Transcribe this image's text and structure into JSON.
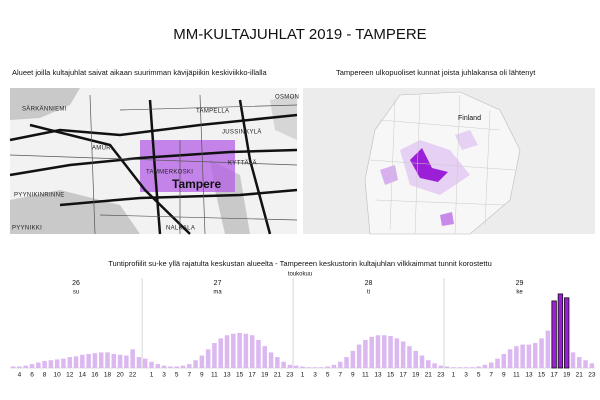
{
  "header": {
    "title": "MM-KULTAJUHLAT 2019 - TAMPERE"
  },
  "map_left": {
    "caption": "Alueet joilla kultajuhlat saivat aikaan suurimman kävijäpiikin keskiviikko-illalla",
    "labels": [
      "SÄRKÄNNIEMI",
      "TAMPELLA",
      "OSMON",
      "JUSSINKYLÄ",
      "AMURI",
      "TAMMERKOSKI",
      "KYTTÄLÄ",
      "Tampere",
      "PYYNIKINRINNE",
      "PYYNIKKI",
      "NALKALA"
    ]
  },
  "map_right": {
    "caption": "Tampereen ulkopuoliset kunnat joista juhlakansa oli lähtenyt",
    "labels": [
      "Finland"
    ]
  },
  "chart_data": {
    "type": "bar",
    "title": "Tuntiprofiilit su-ke yllä rajatulta keskustan alueelta - Tampereen keskustorin kultajuhlan vilkkaimmat tunnit korostettu",
    "month": "toukokuu",
    "days": [
      {
        "day": "26",
        "weekday": "su"
      },
      {
        "day": "27",
        "weekday": "ma"
      },
      {
        "day": "28",
        "weekday": "ti"
      },
      {
        "day": "29",
        "weekday": "ke"
      }
    ],
    "categories": [
      null,
      "4",
      null,
      "6",
      null,
      "8",
      null,
      "10",
      null,
      "12",
      null,
      "14",
      null,
      "16",
      null,
      "18",
      null,
      "20",
      null,
      "22",
      null,
      null,
      "1",
      null,
      "3",
      null,
      "5",
      null,
      "7",
      null,
      "9",
      null,
      "11",
      null,
      "13",
      null,
      "15",
      null,
      "17",
      null,
      "19",
      null,
      "21",
      null,
      "23",
      null,
      "1",
      null,
      "3",
      null,
      "5",
      null,
      "7",
      null,
      "9",
      null,
      "11",
      null,
      "13",
      null,
      "15",
      null,
      "17",
      null,
      "19",
      null,
      "21",
      null,
      "23",
      null,
      "1",
      null,
      "3",
      null,
      "5",
      null,
      "7",
      null,
      "9",
      null,
      "11",
      null,
      "13",
      null,
      "15",
      null,
      "17",
      null,
      "19",
      null,
      "21",
      null,
      "23"
    ],
    "series": [
      {
        "color": "#dcb8f0",
        "values": [
          2,
          2,
          3,
          5,
          7,
          9,
          10,
          11,
          12,
          14,
          15,
          17,
          18,
          19,
          20,
          20,
          18,
          17,
          16,
          24,
          14,
          12,
          8,
          5,
          3,
          2,
          2,
          3,
          5,
          10,
          16,
          24,
          32,
          38,
          42,
          44,
          45,
          44,
          42,
          36,
          28,
          20,
          14,
          8,
          4,
          3,
          2,
          1,
          1,
          1,
          2,
          4,
          8,
          14,
          22,
          30,
          36,
          40,
          42,
          42,
          41,
          38,
          34,
          28,
          22,
          16,
          10,
          6,
          3,
          2,
          1,
          1,
          1,
          1,
          2,
          4,
          7,
          12,
          18,
          24,
          28,
          30,
          30,
          32,
          38,
          48,
          null,
          null,
          null,
          20,
          14,
          10,
          6
        ]
      },
      {
        "color": "#9b1fd6",
        "values": [
          null,
          null,
          null,
          null,
          null,
          null,
          null,
          null,
          null,
          null,
          null,
          null,
          null,
          null,
          null,
          null,
          null,
          null,
          null,
          null,
          null,
          null,
          null,
          null,
          null,
          null,
          null,
          null,
          null,
          null,
          null,
          null,
          null,
          null,
          null,
          null,
          null,
          null,
          null,
          null,
          null,
          null,
          null,
          null,
          null,
          null,
          null,
          null,
          null,
          null,
          null,
          null,
          null,
          null,
          null,
          null,
          null,
          null,
          null,
          null,
          null,
          null,
          null,
          null,
          null,
          null,
          null,
          null,
          null,
          null,
          null,
          null,
          null,
          null,
          null,
          null,
          null,
          null,
          null,
          null,
          null,
          null,
          null,
          null,
          null,
          null,
          86,
          95,
          90,
          null,
          null,
          null,
          null
        ]
      }
    ],
    "ylim": [
      0,
      100
    ]
  }
}
